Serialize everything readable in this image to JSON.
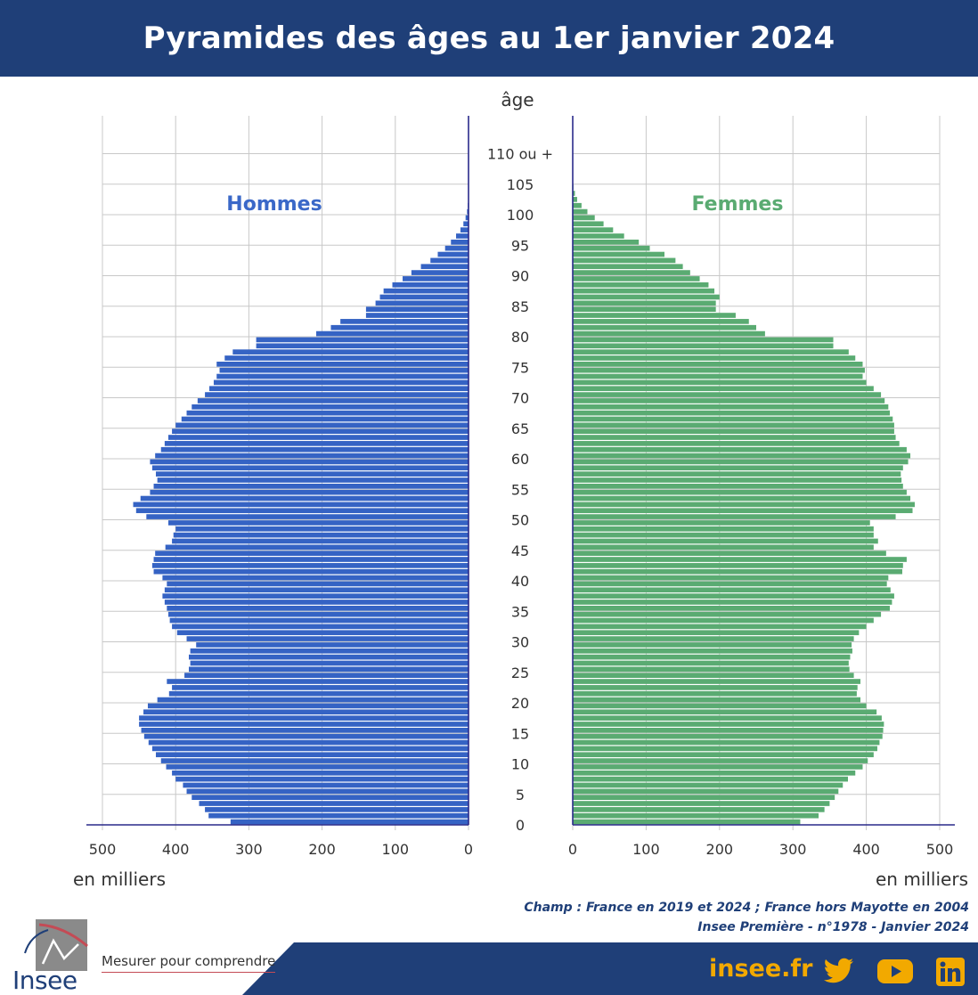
{
  "header": {
    "title": "Pyramides des âges au 1er janvier 2024"
  },
  "chart_data": {
    "type": "bar",
    "orientation": "horizontal-pyramid",
    "title": "Pyramides des âges au 1er janvier 2024",
    "center_axis_label": "âge",
    "age_tick_labels": [
      "0",
      "5",
      "10",
      "15",
      "20",
      "25",
      "30",
      "35",
      "40",
      "45",
      "50",
      "55",
      "60",
      "65",
      "70",
      "75",
      "80",
      "85",
      "90",
      "95",
      "100",
      "105",
      "110 ou +"
    ],
    "x_tick_labels": [
      "500",
      "400",
      "300",
      "200",
      "100",
      "0"
    ],
    "x_tick_labels_right": [
      "0",
      "100",
      "200",
      "300",
      "400",
      "500"
    ],
    "xlabel_left": "en milliers",
    "xlabel_right": "en milliers",
    "xlim": [
      0,
      500
    ],
    "grid": true,
    "ages": [
      0,
      1,
      2,
      3,
      4,
      5,
      6,
      7,
      8,
      9,
      10,
      11,
      12,
      13,
      14,
      15,
      16,
      17,
      18,
      19,
      20,
      21,
      22,
      23,
      24,
      25,
      26,
      27,
      28,
      29,
      30,
      31,
      32,
      33,
      34,
      35,
      36,
      37,
      38,
      39,
      40,
      41,
      42,
      43,
      44,
      45,
      46,
      47,
      48,
      49,
      50,
      51,
      52,
      53,
      54,
      55,
      56,
      57,
      58,
      59,
      60,
      61,
      62,
      63,
      64,
      65,
      66,
      67,
      68,
      69,
      70,
      71,
      72,
      73,
      74,
      75,
      76,
      77,
      78,
      79,
      80,
      81,
      82,
      83,
      84,
      85,
      86,
      87,
      88,
      89,
      90,
      91,
      92,
      93,
      94,
      95,
      96,
      97,
      98,
      99,
      100,
      101,
      102,
      103,
      104,
      105
    ],
    "series": [
      {
        "name": "Hommes",
        "color": "#3563c4",
        "values": [
          325,
          355,
          360,
          368,
          378,
          385,
          390,
          400,
          405,
          413,
          420,
          427,
          432,
          437,
          443,
          447,
          450,
          450,
          444,
          438,
          425,
          409,
          405,
          412,
          388,
          382,
          380,
          382,
          380,
          372,
          385,
          398,
          405,
          408,
          410,
          412,
          415,
          418,
          415,
          412,
          418,
          430,
          432,
          430,
          428,
          414,
          405,
          403,
          400,
          410,
          440,
          454,
          458,
          448,
          435,
          430,
          425,
          427,
          432,
          435,
          428,
          420,
          415,
          410,
          405,
          400,
          392,
          385,
          378,
          370,
          360,
          354,
          348,
          344,
          340,
          344,
          333,
          322,
          290,
          290,
          208,
          188,
          175,
          140,
          140,
          127,
          121,
          116,
          104,
          90,
          78,
          65,
          52,
          42,
          32,
          24,
          17,
          11,
          7,
          4,
          2,
          1,
          0.5,
          0.2,
          0.1,
          0.05
        ]
      },
      {
        "name": "Femmes",
        "color": "#5aab72",
        "values": [
          310,
          335,
          343,
          350,
          357,
          362,
          368,
          375,
          385,
          395,
          402,
          410,
          415,
          418,
          422,
          423,
          424,
          421,
          414,
          400,
          392,
          387,
          388,
          392,
          383,
          377,
          376,
          378,
          381,
          380,
          383,
          390,
          400,
          410,
          420,
          432,
          435,
          438,
          433,
          428,
          430,
          449,
          450,
          455,
          427,
          410,
          416,
          410,
          410,
          405,
          440,
          463,
          466,
          460,
          455,
          450,
          448,
          447,
          450,
          457,
          460,
          455,
          445,
          440,
          438,
          438,
          436,
          432,
          430,
          425,
          420,
          410,
          400,
          395,
          398,
          395,
          385,
          376,
          355,
          355,
          262,
          250,
          240,
          222,
          195,
          195,
          200,
          193,
          185,
          173,
          160,
          150,
          140,
          125,
          105,
          90,
          70,
          55,
          42,
          30,
          20,
          12,
          6,
          3,
          1,
          0.5
        ]
      }
    ]
  },
  "footer": {
    "source_line1": "Champ :  France en 2019 et 2024 ; France hors Mayotte en 2004",
    "source_line2": "Insee Première - n°1978 - Janvier 2024",
    "tagline": "Mesurer pour comprendre",
    "brand": "Insee",
    "website": "insee.fr",
    "icons": [
      "twitter-icon",
      "youtube-icon",
      "linkedin-icon"
    ],
    "colors": {
      "navy": "#1f3f78",
      "accent": "#f2a900",
      "men": "#3563c4",
      "women": "#5aab72"
    }
  }
}
